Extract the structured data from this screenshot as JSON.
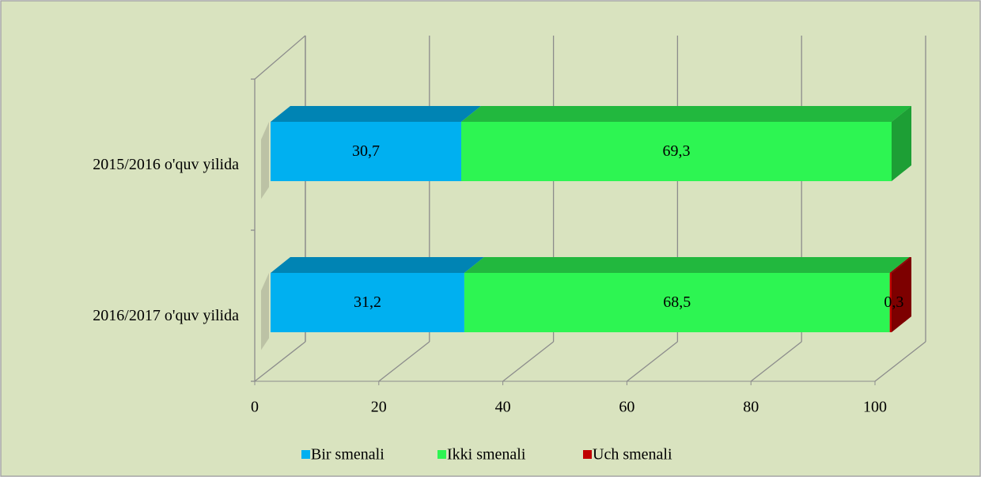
{
  "chart_data": {
    "type": "bar3d_stacked_horizontal",
    "categories": [
      "2015/2016 o'quv yilida",
      "2016/2017 o'quv yilida"
    ],
    "series": [
      {
        "name": "Bir smenali",
        "color": "#00b0f0",
        "values": [
          30.7,
          31.2
        ],
        "value_labels": [
          "30,7",
          "31,2"
        ]
      },
      {
        "name": "Ikki smenali",
        "color": "#2df552",
        "values": [
          69.3,
          68.5
        ],
        "value_labels": [
          "69,3",
          "68,5"
        ]
      },
      {
        "name": "Uch smenali",
        "color": "#c00000",
        "values": [
          null,
          0.3
        ],
        "value_labels": [
          null,
          "0,3"
        ]
      }
    ],
    "xlim": [
      0,
      100
    ],
    "xticks": [
      0,
      20,
      40,
      60,
      80,
      100
    ],
    "grid": true,
    "legend": "bottom"
  }
}
